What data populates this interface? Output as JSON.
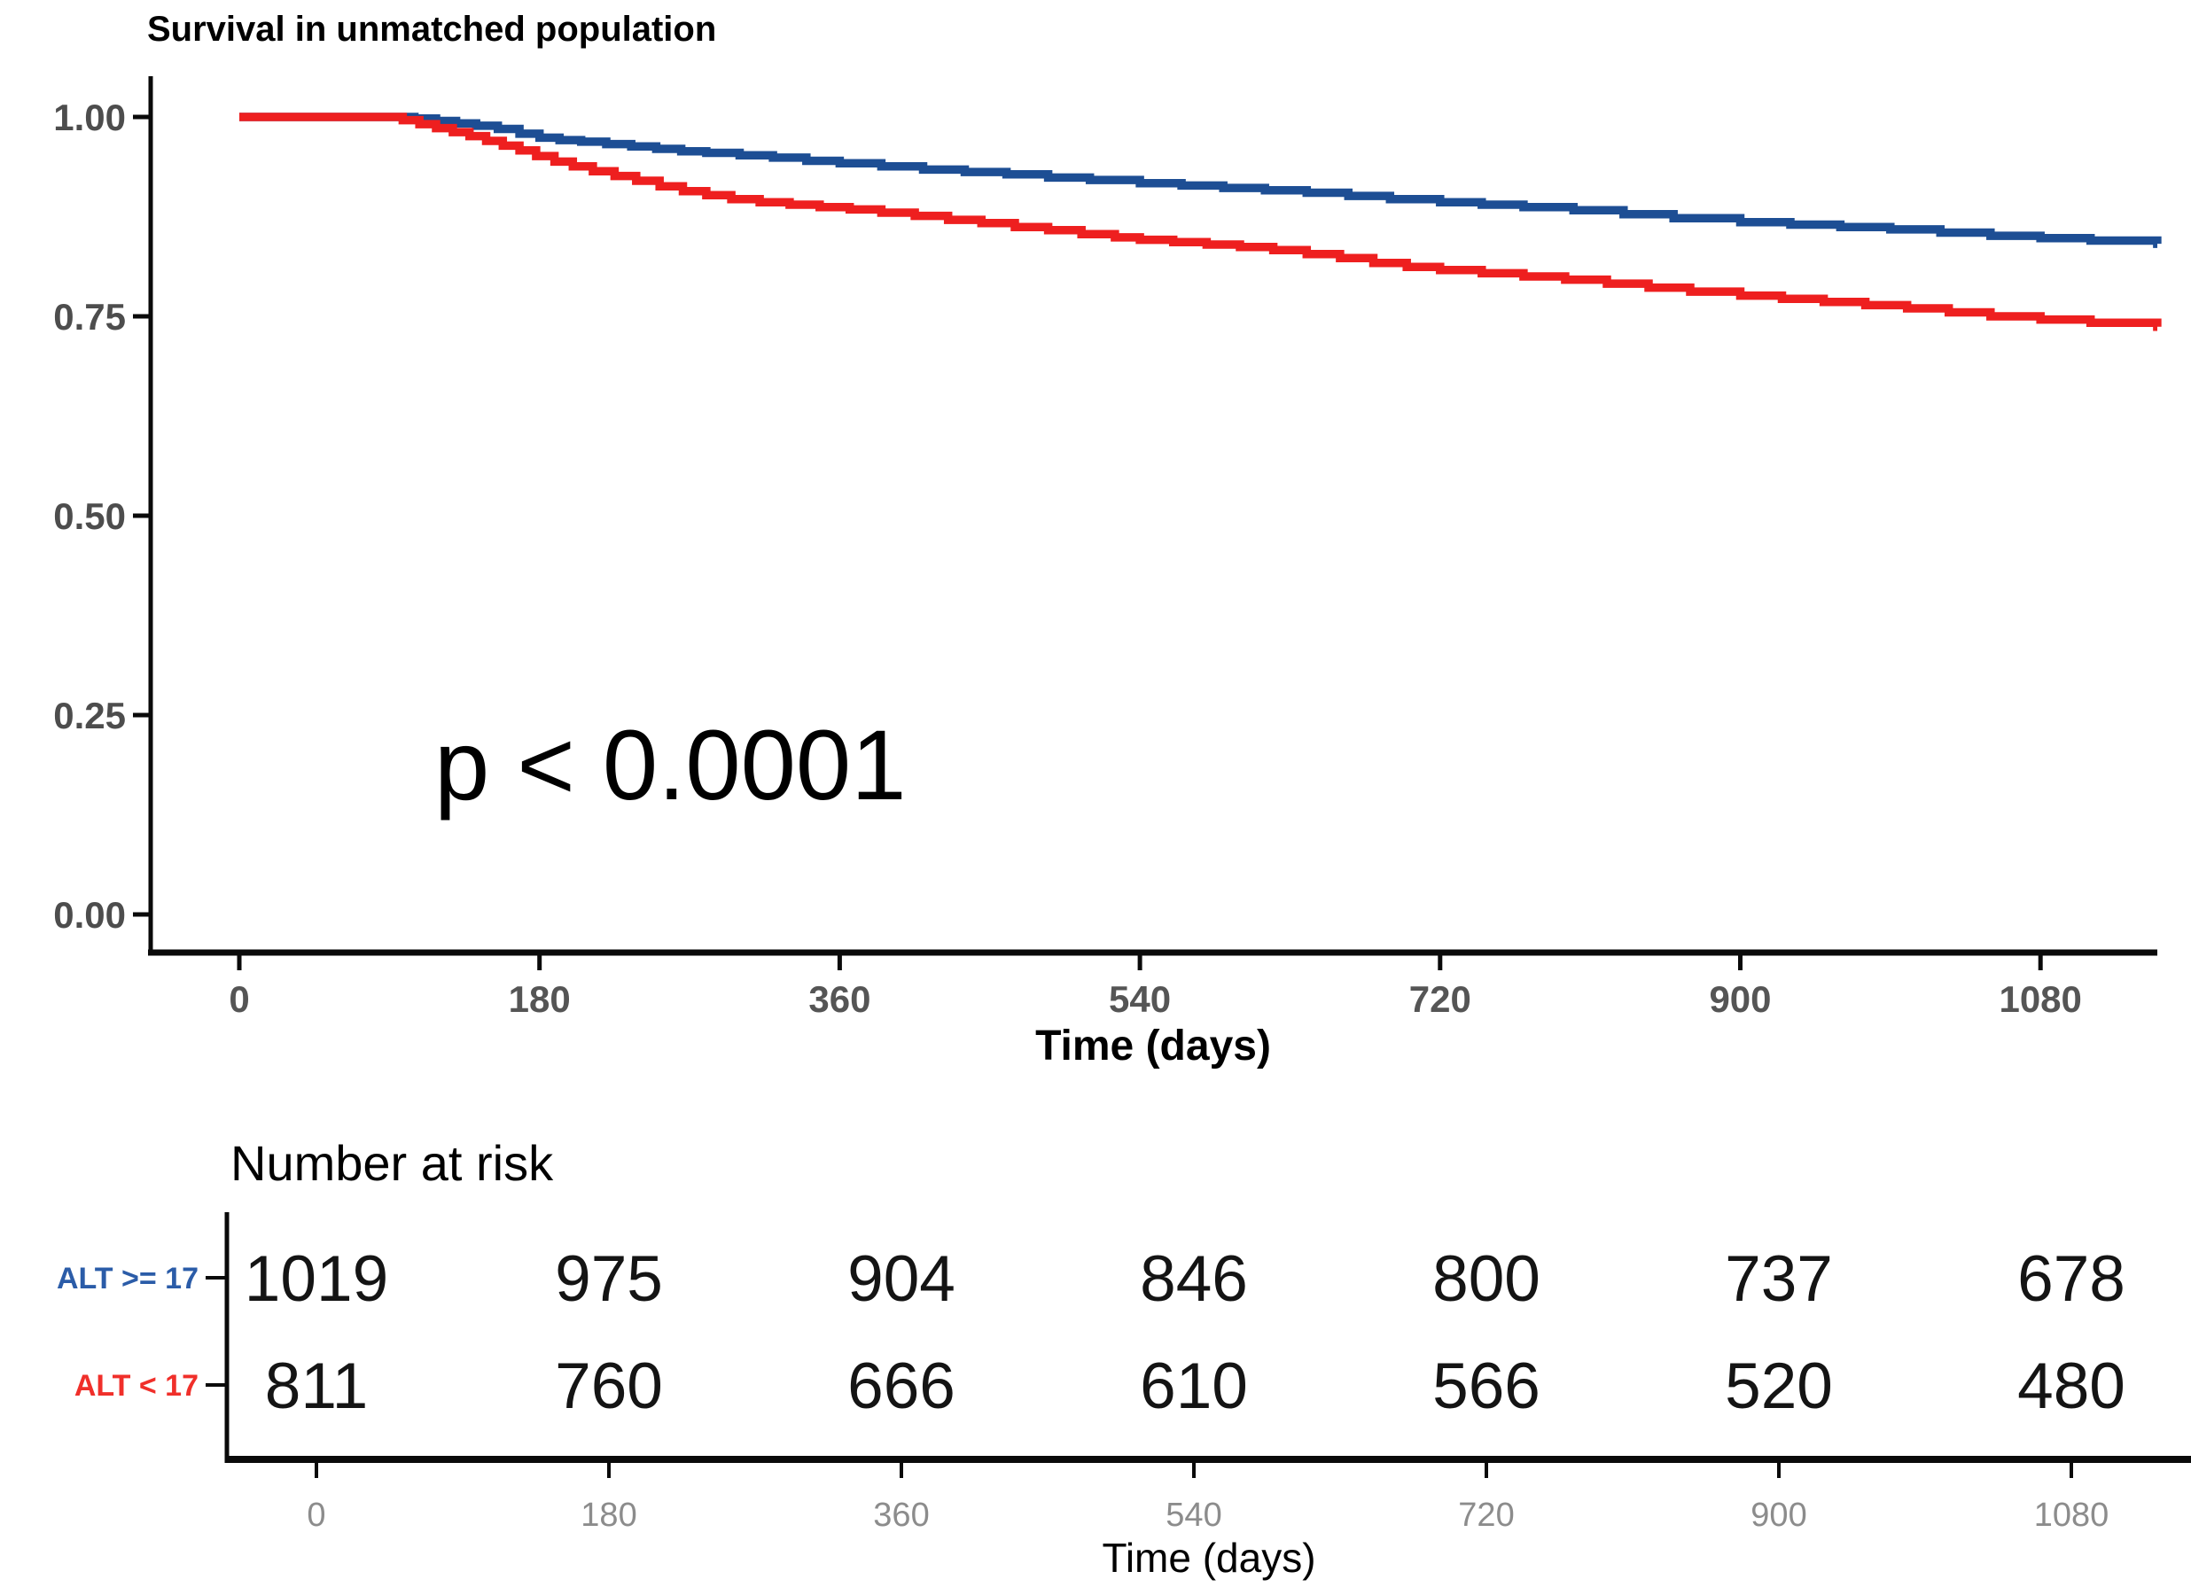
{
  "chart_data": {
    "type": "line",
    "subtype": "kaplan-meier-step",
    "title": "Survival in unmatched population",
    "xlabel": "Time (days)",
    "ylabel": "",
    "x_ticks": [
      0,
      180,
      360,
      540,
      720,
      900,
      1080
    ],
    "y_ticks": [
      "1.00",
      "0.75",
      "0.50",
      "0.25",
      "0.00"
    ],
    "xlim": [
      0,
      1150
    ],
    "ylim": [
      0.0,
      1.0
    ],
    "grid": false,
    "legend_position": "none",
    "annotation": "p < 0.0001",
    "series": [
      {
        "name": "ALT >= 17",
        "color": "#1d4e94",
        "points": [
          [
            0,
            1.0
          ],
          [
            95,
            1.0
          ],
          [
            105,
            0.998
          ],
          [
            118,
            0.995
          ],
          [
            130,
            0.992
          ],
          [
            142,
            0.989
          ],
          [
            155,
            0.985
          ],
          [
            168,
            0.979
          ],
          [
            180,
            0.974
          ],
          [
            192,
            0.971
          ],
          [
            205,
            0.969
          ],
          [
            220,
            0.966
          ],
          [
            235,
            0.963
          ],
          [
            250,
            0.96
          ],
          [
            265,
            0.957
          ],
          [
            280,
            0.955
          ],
          [
            300,
            0.952
          ],
          [
            320,
            0.949
          ],
          [
            340,
            0.945
          ],
          [
            360,
            0.942
          ],
          [
            385,
            0.938
          ],
          [
            410,
            0.934
          ],
          [
            435,
            0.931
          ],
          [
            460,
            0.928
          ],
          [
            485,
            0.924
          ],
          [
            510,
            0.921
          ],
          [
            540,
            0.917
          ],
          [
            565,
            0.914
          ],
          [
            590,
            0.911
          ],
          [
            615,
            0.908
          ],
          [
            640,
            0.905
          ],
          [
            665,
            0.901
          ],
          [
            690,
            0.897
          ],
          [
            720,
            0.893
          ],
          [
            745,
            0.89
          ],
          [
            770,
            0.887
          ],
          [
            800,
            0.883
          ],
          [
            830,
            0.878
          ],
          [
            860,
            0.873
          ],
          [
            900,
            0.868
          ],
          [
            930,
            0.865
          ],
          [
            960,
            0.862
          ],
          [
            990,
            0.859
          ],
          [
            1020,
            0.855
          ],
          [
            1050,
            0.851
          ],
          [
            1080,
            0.848
          ],
          [
            1110,
            0.845
          ],
          [
            1150,
            0.841
          ]
        ]
      },
      {
        "name": "ALT < 17",
        "color": "#ee1f1f",
        "points": [
          [
            0,
            1.0
          ],
          [
            88,
            1.0
          ],
          [
            98,
            0.996
          ],
          [
            108,
            0.991
          ],
          [
            118,
            0.986
          ],
          [
            128,
            0.981
          ],
          [
            138,
            0.976
          ],
          [
            148,
            0.97
          ],
          [
            158,
            0.964
          ],
          [
            168,
            0.958
          ],
          [
            178,
            0.951
          ],
          [
            189,
            0.944
          ],
          [
            200,
            0.938
          ],
          [
            212,
            0.932
          ],
          [
            225,
            0.926
          ],
          [
            238,
            0.92
          ],
          [
            252,
            0.913
          ],
          [
            266,
            0.907
          ],
          [
            280,
            0.902
          ],
          [
            295,
            0.897
          ],
          [
            312,
            0.893
          ],
          [
            330,
            0.89
          ],
          [
            348,
            0.887
          ],
          [
            366,
            0.884
          ],
          [
            385,
            0.88
          ],
          [
            405,
            0.876
          ],
          [
            425,
            0.871
          ],
          [
            445,
            0.867
          ],
          [
            465,
            0.862
          ],
          [
            485,
            0.858
          ],
          [
            505,
            0.853
          ],
          [
            525,
            0.849
          ],
          [
            540,
            0.846
          ],
          [
            560,
            0.843
          ],
          [
            580,
            0.84
          ],
          [
            600,
            0.837
          ],
          [
            620,
            0.833
          ],
          [
            640,
            0.828
          ],
          [
            660,
            0.823
          ],
          [
            680,
            0.817
          ],
          [
            700,
            0.812
          ],
          [
            720,
            0.808
          ],
          [
            745,
            0.804
          ],
          [
            770,
            0.8
          ],
          [
            795,
            0.796
          ],
          [
            820,
            0.791
          ],
          [
            845,
            0.786
          ],
          [
            870,
            0.781
          ],
          [
            900,
            0.776
          ],
          [
            925,
            0.772
          ],
          [
            950,
            0.768
          ],
          [
            975,
            0.764
          ],
          [
            1000,
            0.76
          ],
          [
            1025,
            0.755
          ],
          [
            1050,
            0.75
          ],
          [
            1080,
            0.746
          ],
          [
            1110,
            0.742
          ],
          [
            1150,
            0.737
          ]
        ]
      }
    ]
  },
  "risk_table": {
    "heading": "Number at risk",
    "xlabel": "Time (days)",
    "x_ticks": [
      0,
      180,
      360,
      540,
      720,
      900,
      1080
    ],
    "rows": [
      {
        "label": "ALT >= 17",
        "color": "#2b5ca8",
        "counts": [
          1019,
          975,
          904,
          846,
          800,
          737,
          678
        ]
      },
      {
        "label": "ALT < 17",
        "color": "#f02f2a",
        "counts": [
          811,
          760,
          666,
          610,
          566,
          520,
          480
        ]
      }
    ]
  },
  "colors": {
    "blue_curve": "#1d4e94",
    "red_curve": "#ee1f1f",
    "axis_line": "#0a0a0a",
    "axis_text": "#4d4d4d",
    "mini_axis_text": "#8c8c8c",
    "background": "#ffffff"
  }
}
